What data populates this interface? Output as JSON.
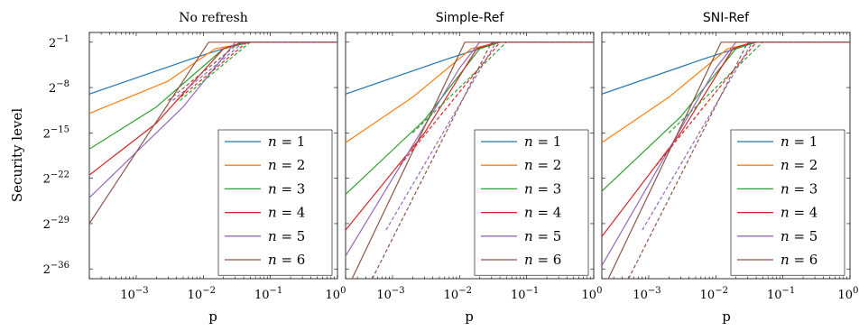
{
  "figure": {
    "ylabel": "Security level",
    "xlabel": "p"
  },
  "chart_data": [
    {
      "type": "line",
      "title": "No refresh",
      "xlabel": "p",
      "ylabel": "Security level",
      "x_scale": "log10",
      "y_scale": "log2",
      "xlim": [
        0.0002,
        1
      ],
      "ylim_log2": [
        -37.5,
        0.5
      ],
      "x_tick_labels": [
        "10^-3",
        "10^-2",
        "10^-1",
        "10^0"
      ],
      "y_tick_labels": [
        "2^-1",
        "2^-8",
        "2^-15",
        "2^-22",
        "2^-29",
        "2^-36"
      ],
      "legend": "bottom-right",
      "series": [
        {
          "name": "n = 1",
          "color": "#1f77b4",
          "style": "solid",
          "points": [
            [
              0.0002,
              -9
            ],
            [
              0.007,
              -3.5
            ],
            [
              0.04,
              -1
            ],
            [
              1,
              -1
            ]
          ]
        },
        {
          "name": "n = 2",
          "color": "#ff7f0e",
          "style": "solid",
          "points": [
            [
              0.0002,
              -12
            ],
            [
              0.003,
              -7
            ],
            [
              0.015,
              -2
            ],
            [
              0.05,
              -1
            ],
            [
              1,
              -1
            ]
          ]
        },
        {
          "name": "n = 3",
          "color": "#2ca02c",
          "style": "solid",
          "points": [
            [
              0.0002,
              -17.5
            ],
            [
              0.002,
              -11
            ],
            [
              0.02,
              -2
            ],
            [
              0.05,
              -1
            ],
            [
              1,
              -1
            ]
          ]
        },
        {
          "name": "n = 4",
          "color": "#d62728",
          "style": "solid",
          "points": [
            [
              0.0002,
              -21.5
            ],
            [
              0.002,
              -13.5
            ],
            [
              0.02,
              -2
            ],
            [
              0.04,
              -1
            ],
            [
              1,
              -1
            ]
          ]
        },
        {
          "name": "n = 5",
          "color": "#9467bd",
          "style": "solid",
          "points": [
            [
              0.0002,
              -25
            ],
            [
              0.005,
              -11
            ],
            [
              0.03,
              -1
            ],
            [
              1,
              -1
            ]
          ]
        },
        {
          "name": "n = 6",
          "color": "#8c564b",
          "style": "solid",
          "points": [
            [
              0.0002,
              -29
            ],
            [
              0.012,
              -1
            ],
            [
              1,
              -1
            ]
          ]
        },
        {
          "name": "",
          "color": "#2ca02c",
          "style": "dashed",
          "points": [
            [
              0.0045,
              -10
            ],
            [
              0.05,
              -1
            ],
            [
              1,
              -1
            ]
          ]
        },
        {
          "name": "",
          "color": "#d62728",
          "style": "dashed",
          "points": [
            [
              0.004,
              -10
            ],
            [
              0.045,
              -1
            ],
            [
              1,
              -1
            ]
          ]
        },
        {
          "name": "",
          "color": "#9467bd",
          "style": "dashed",
          "points": [
            [
              0.0035,
              -10
            ],
            [
              0.04,
              -1
            ],
            [
              1,
              -1
            ]
          ]
        },
        {
          "name": "",
          "color": "#8c564b",
          "style": "dashed",
          "points": [
            [
              0.003,
              -10
            ],
            [
              0.035,
              -1
            ],
            [
              1,
              -1
            ]
          ]
        }
      ]
    },
    {
      "type": "line",
      "title": "Simple-Ref",
      "xlabel": "p",
      "ylabel": "",
      "x_scale": "log10",
      "y_scale": "log2",
      "xlim": [
        0.0002,
        1
      ],
      "ylim_log2": [
        -37.5,
        0.5
      ],
      "x_tick_labels": [
        "10^-3",
        "10^-2",
        "10^-1",
        "10^0"
      ],
      "y_tick_labels": [],
      "legend": "bottom-right",
      "series": [
        {
          "name": "n = 1",
          "color": "#1f77b4",
          "style": "solid",
          "points": [
            [
              0.0002,
              -9
            ],
            [
              0.007,
              -3.5
            ],
            [
              0.04,
              -1
            ],
            [
              1,
              -1
            ]
          ]
        },
        {
          "name": "n = 2",
          "color": "#ff7f0e",
          "style": "solid",
          "points": [
            [
              0.0002,
              -16.5
            ],
            [
              0.002,
              -9.5
            ],
            [
              0.015,
              -2
            ],
            [
              0.04,
              -1
            ],
            [
              1,
              -1
            ]
          ]
        },
        {
          "name": "n = 3",
          "color": "#2ca02c",
          "style": "solid",
          "points": [
            [
              0.0002,
              -24.5
            ],
            [
              0.003,
              -13
            ],
            [
              0.02,
              -2
            ],
            [
              0.04,
              -1
            ],
            [
              1,
              -1
            ]
          ]
        },
        {
          "name": "n = 4",
          "color": "#d62728",
          "style": "solid",
          "points": [
            [
              0.0002,
              -30
            ],
            [
              0.003,
              -15
            ],
            [
              0.018,
              -2
            ],
            [
              0.035,
              -1
            ],
            [
              1,
              -1
            ]
          ]
        },
        {
          "name": "n = 5",
          "color": "#9467bd",
          "style": "solid",
          "points": [
            [
              0.0002,
              -34
            ],
            [
              0.01,
              -5
            ],
            [
              0.02,
              -1
            ],
            [
              1,
              -1
            ]
          ]
        },
        {
          "name": "n = 6",
          "color": "#8c564b",
          "style": "solid",
          "points": [
            [
              0.00025,
              -37.5
            ],
            [
              0.012,
              -1
            ],
            [
              1,
              -1
            ]
          ]
        },
        {
          "name": "",
          "color": "#2ca02c",
          "style": "dashed",
          "points": [
            [
              0.002,
              -15
            ],
            [
              0.05,
              -1
            ],
            [
              1,
              -1
            ]
          ]
        },
        {
          "name": "",
          "color": "#d62728",
          "style": "dashed",
          "points": [
            [
              0.0013,
              -20
            ],
            [
              0.04,
              -1
            ],
            [
              1,
              -1
            ]
          ]
        },
        {
          "name": "",
          "color": "#9467bd",
          "style": "dashed",
          "points": [
            [
              0.0008,
              -30
            ],
            [
              0.035,
              -1
            ],
            [
              1,
              -1
            ]
          ]
        },
        {
          "name": "",
          "color": "#8c564b",
          "style": "dashed",
          "points": [
            [
              0.0005,
              -37.5
            ],
            [
              0.03,
              -1
            ],
            [
              1,
              -1
            ]
          ]
        }
      ]
    },
    {
      "type": "line",
      "title": "SNI-Ref",
      "xlabel": "p",
      "ylabel": "",
      "x_scale": "log10",
      "y_scale": "log2",
      "xlim": [
        0.0002,
        1
      ],
      "ylim_log2": [
        -37.5,
        0.5
      ],
      "x_tick_labels": [
        "10^-3",
        "10^-2",
        "10^-1",
        "10^0"
      ],
      "y_tick_labels": [],
      "legend": "bottom-right",
      "series": [
        {
          "name": "n = 1",
          "color": "#1f77b4",
          "style": "solid",
          "points": [
            [
              0.0002,
              -9
            ],
            [
              0.007,
              -3.5
            ],
            [
              0.04,
              -1
            ],
            [
              1,
              -1
            ]
          ]
        },
        {
          "name": "n = 2",
          "color": "#ff7f0e",
          "style": "solid",
          "points": [
            [
              0.0002,
              -16.5
            ],
            [
              0.002,
              -9.5
            ],
            [
              0.015,
              -2
            ],
            [
              0.04,
              -1
            ],
            [
              1,
              -1
            ]
          ]
        },
        {
          "name": "n = 3",
          "color": "#2ca02c",
          "style": "solid",
          "points": [
            [
              0.0002,
              -24
            ],
            [
              0.003,
              -12.5
            ],
            [
              0.02,
              -2
            ],
            [
              0.04,
              -1
            ],
            [
              1,
              -1
            ]
          ]
        },
        {
          "name": "n = 4",
          "color": "#d62728",
          "style": "solid",
          "points": [
            [
              0.0002,
              -31
            ],
            [
              0.003,
              -15
            ],
            [
              0.018,
              -2
            ],
            [
              0.035,
              -1
            ],
            [
              1,
              -1
            ]
          ]
        },
        {
          "name": "n = 5",
          "color": "#9467bd",
          "style": "solid",
          "points": [
            [
              0.0002,
              -35.5
            ],
            [
              0.01,
              -5
            ],
            [
              0.02,
              -1
            ],
            [
              1,
              -1
            ]
          ]
        },
        {
          "name": "n = 6",
          "color": "#8c564b",
          "style": "solid",
          "points": [
            [
              0.00025,
              -37.5
            ],
            [
              0.012,
              -1
            ],
            [
              1,
              -1
            ]
          ]
        },
        {
          "name": "",
          "color": "#2ca02c",
          "style": "dashed",
          "points": [
            [
              0.002,
              -15
            ],
            [
              0.05,
              -1
            ],
            [
              1,
              -1
            ]
          ]
        },
        {
          "name": "",
          "color": "#d62728",
          "style": "dashed",
          "points": [
            [
              0.0013,
              -20
            ],
            [
              0.04,
              -1
            ],
            [
              1,
              -1
            ]
          ]
        },
        {
          "name": "",
          "color": "#9467bd",
          "style": "dashed",
          "points": [
            [
              0.0008,
              -30
            ],
            [
              0.035,
              -1
            ],
            [
              1,
              -1
            ]
          ]
        },
        {
          "name": "",
          "color": "#8c564b",
          "style": "dashed",
          "points": [
            [
              0.0005,
              -37.5
            ],
            [
              0.03,
              -1
            ],
            [
              1,
              -1
            ]
          ]
        }
      ]
    }
  ]
}
